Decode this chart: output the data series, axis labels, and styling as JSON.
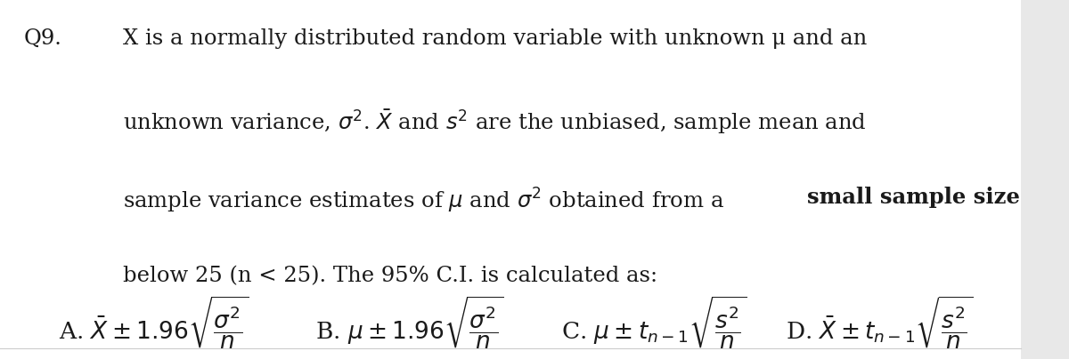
{
  "bg_color": "#ffffff",
  "right_bg": "#e8e8e8",
  "figsize": [
    12.0,
    4.04
  ],
  "dpi": 100,
  "body_fontsize": 17.5,
  "math_fontsize": 19,
  "text_color": "#1a1a1a",
  "q_label": "Q9.",
  "line1": "X is a normally distributed random variable with unknown μ and an",
  "line2": "unknown variance, σ². X̄ and s² are the unbiased, sample mean and",
  "line3a": "sample variance estimates of μ and σ² obtained from a ",
  "line3b": "small sample size",
  "line4": "below 25 (n < 25). The 95% C.I. is calculated as:"
}
